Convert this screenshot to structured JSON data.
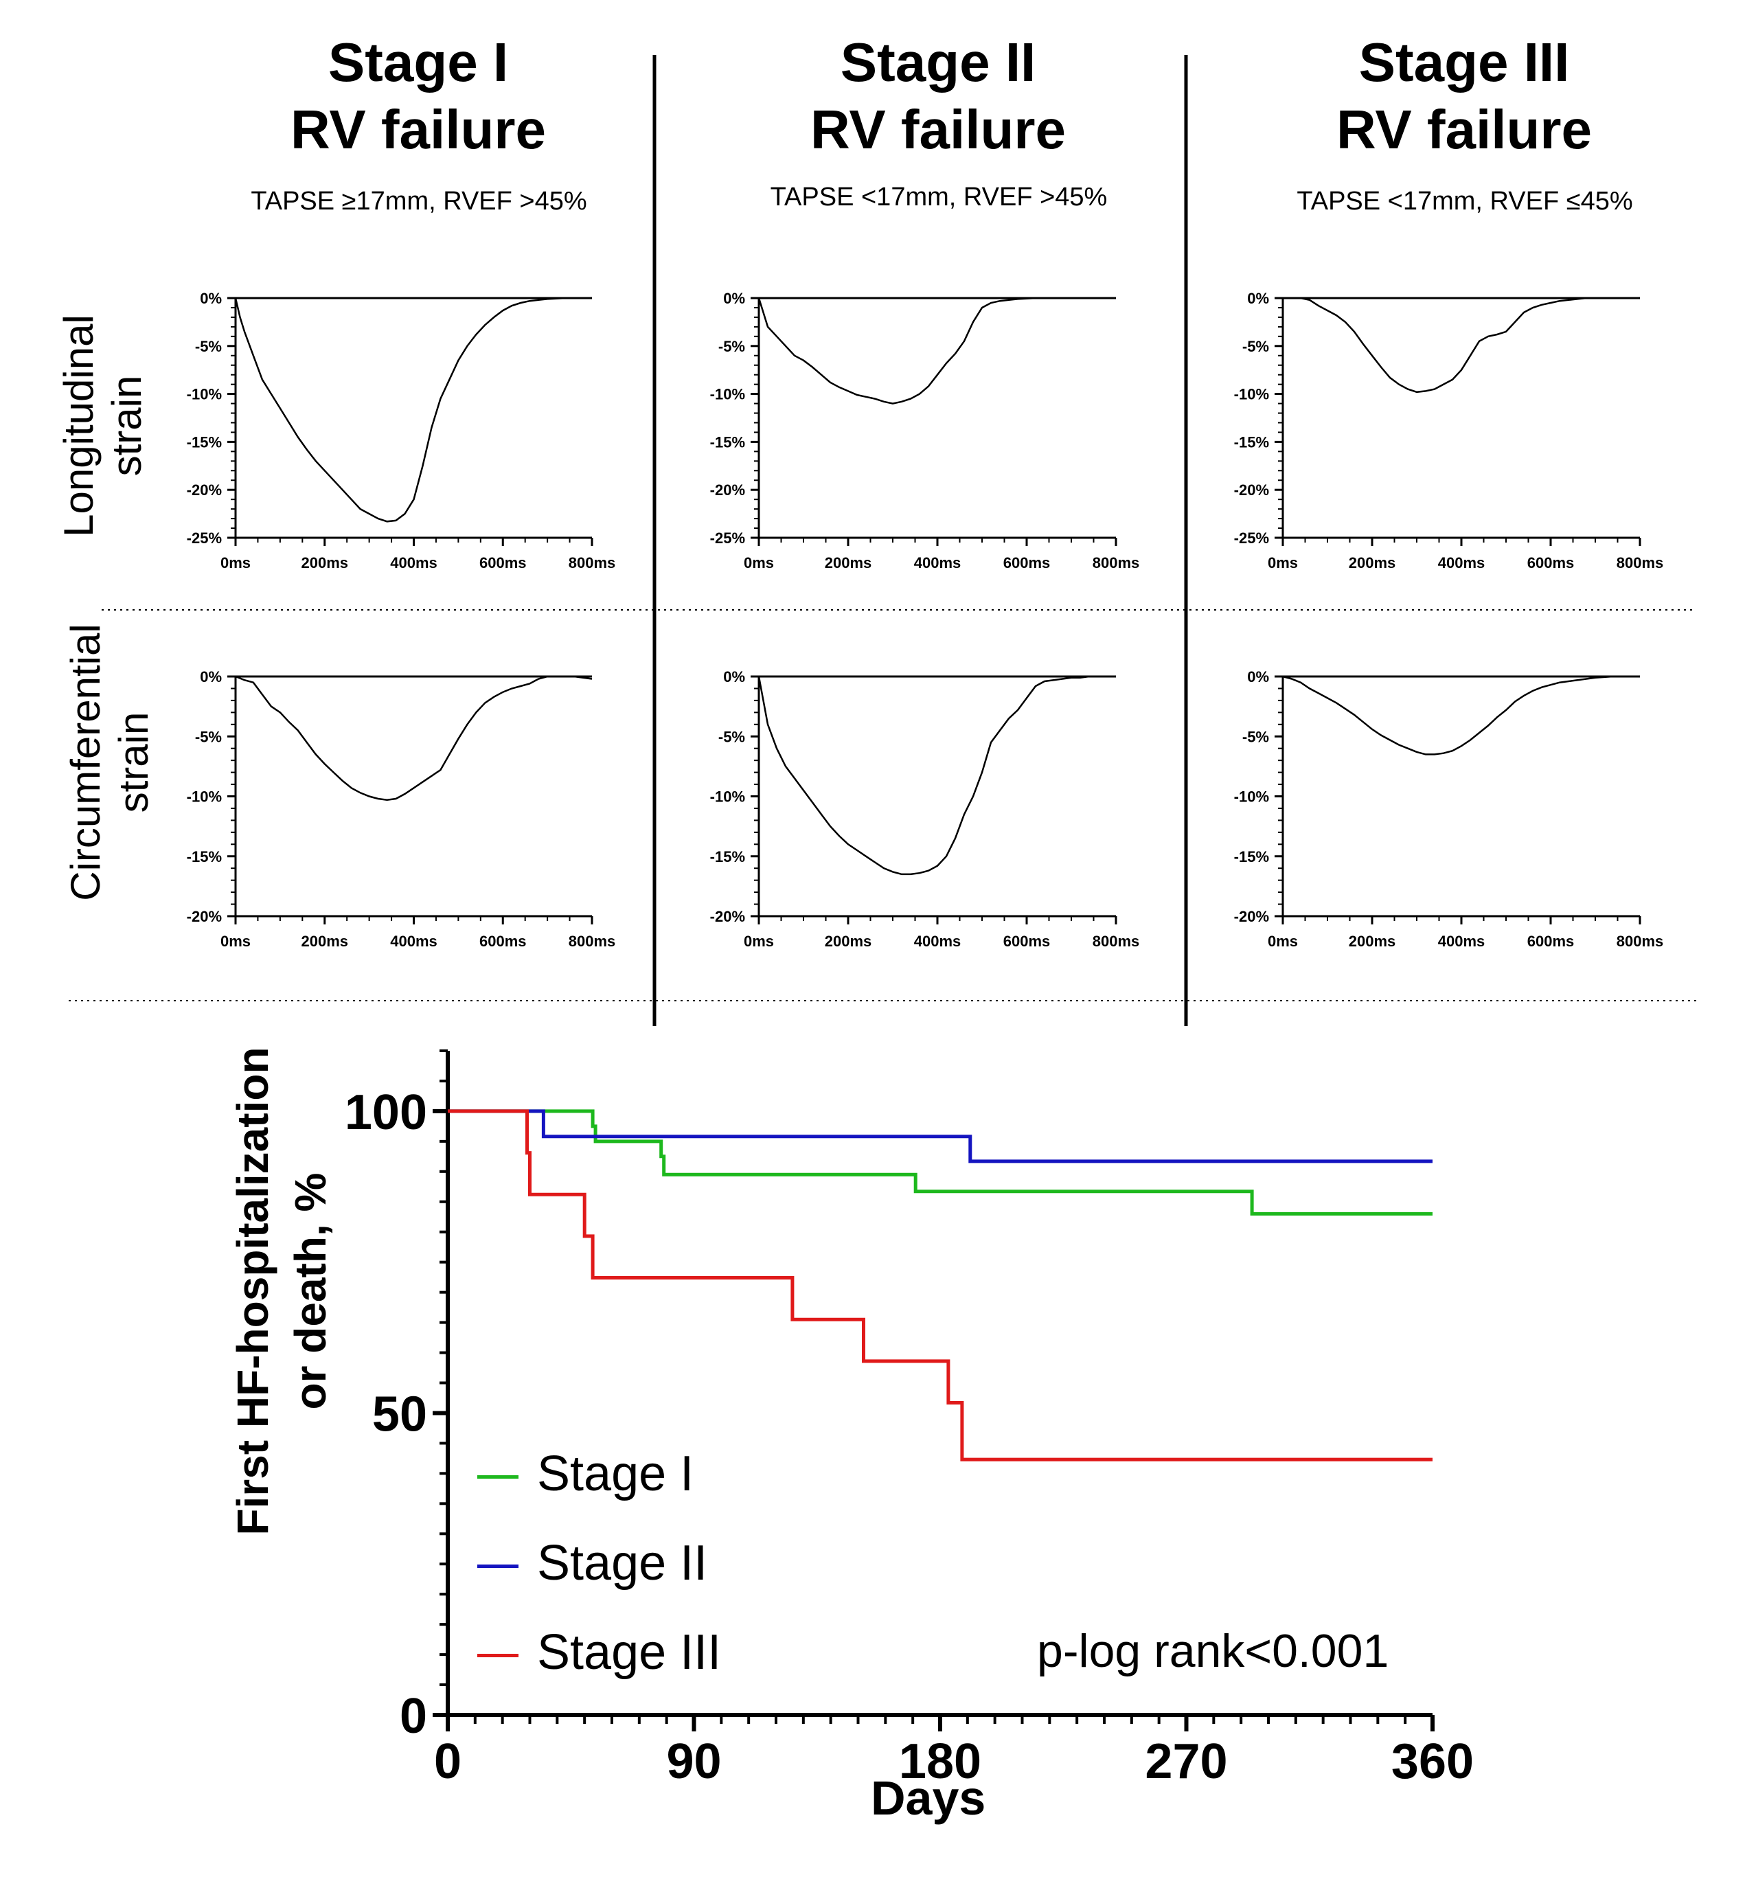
{
  "columns": [
    {
      "title_line1": "Stage I",
      "title_line2": "RV failure",
      "subtitle": "TAPSE ≥17mm, RVEF >45%"
    },
    {
      "title_line1": "Stage II",
      "title_line2": "RV failure",
      "subtitle": "TAPSE <17mm, RVEF >45%"
    },
    {
      "title_line1": "Stage III",
      "title_line2": "RV failure",
      "subtitle": "TAPSE <17mm, RVEF ≤45%"
    }
  ],
  "rows": [
    {
      "label_line1": "Longitudinal",
      "label_line2": "strain"
    },
    {
      "label_line1": "Circumferential",
      "label_line2": "strain"
    }
  ],
  "chart_data": [
    {
      "type": "line",
      "panel": "Longitudinal strain - Stage I",
      "x_ticks": [
        "0ms",
        "200ms",
        "400ms",
        "600ms",
        "800ms"
      ],
      "y_ticks": [
        "0%",
        "-5%",
        "-10%",
        "-15%",
        "-20%",
        "-25%"
      ],
      "xlim": [
        0,
        800
      ],
      "ylim": [
        -25,
        0
      ],
      "series": [
        {
          "x": [
            0,
            10,
            20,
            40,
            60,
            80,
            100,
            120,
            140,
            160,
            180,
            200,
            220,
            240,
            260,
            280,
            300,
            320,
            340,
            360,
            380,
            400,
            420,
            440,
            460,
            480,
            500,
            520,
            540,
            560,
            580,
            600,
            620,
            640,
            660,
            680,
            700,
            720,
            740,
            760,
            780,
            800
          ],
          "y": [
            0,
            -2,
            -3.5,
            -6,
            -8.5,
            -10,
            -11.5,
            -13,
            -14.5,
            -15.8,
            -17,
            -18,
            -19,
            -20,
            -21,
            -22,
            -22.5,
            -23,
            -23.3,
            -23.2,
            -22.5,
            -21,
            -17.5,
            -13.5,
            -10.5,
            -8.5,
            -6.5,
            -5,
            -3.8,
            -2.8,
            -2,
            -1.3,
            -0.8,
            -0.5,
            -0.3,
            -0.2,
            -0.1,
            -0.05,
            0,
            0,
            0,
            0
          ]
        }
      ]
    },
    {
      "type": "line",
      "panel": "Longitudinal strain - Stage II",
      "x_ticks": [
        "0ms",
        "200ms",
        "400ms",
        "600ms",
        "800ms"
      ],
      "y_ticks": [
        "0%",
        "-5%",
        "-10%",
        "-15%",
        "-20%",
        "-25%"
      ],
      "xlim": [
        0,
        800
      ],
      "ylim": [
        -25,
        0
      ],
      "series": [
        {
          "x": [
            0,
            10,
            20,
            40,
            60,
            80,
            100,
            120,
            140,
            160,
            180,
            200,
            220,
            240,
            260,
            280,
            300,
            320,
            340,
            360,
            380,
            400,
            420,
            440,
            460,
            480,
            500,
            520,
            540,
            560,
            580,
            600,
            620,
            640,
            660,
            680,
            700,
            720,
            740,
            760,
            780,
            800
          ],
          "y": [
            0,
            -1.5,
            -3,
            -4,
            -5,
            -6,
            -6.5,
            -7.2,
            -8,
            -8.8,
            -9.3,
            -9.7,
            -10.1,
            -10.3,
            -10.5,
            -10.8,
            -11,
            -10.8,
            -10.5,
            -10,
            -9.2,
            -8,
            -6.8,
            -5.8,
            -4.5,
            -2.5,
            -1,
            -0.5,
            -0.3,
            -0.2,
            -0.1,
            -0.05,
            0,
            0,
            0,
            0,
            0,
            0,
            0,
            0,
            0,
            0
          ]
        }
      ]
    },
    {
      "type": "line",
      "panel": "Longitudinal strain - Stage III",
      "x_ticks": [
        "0ms",
        "200ms",
        "400ms",
        "600ms",
        "800ms"
      ],
      "y_ticks": [
        "0%",
        "-5%",
        "-10%",
        "-15%",
        "-20%",
        "-25%"
      ],
      "xlim": [
        0,
        800
      ],
      "ylim": [
        -25,
        0
      ],
      "series": [
        {
          "x": [
            0,
            20,
            40,
            60,
            80,
            100,
            120,
            140,
            160,
            180,
            200,
            220,
            240,
            260,
            280,
            300,
            320,
            340,
            360,
            380,
            400,
            420,
            440,
            460,
            480,
            500,
            520,
            540,
            560,
            580,
            600,
            620,
            640,
            660,
            680,
            700,
            720,
            740,
            760,
            780,
            800
          ],
          "y": [
            0,
            0,
            0,
            -0.2,
            -0.8,
            -1.3,
            -1.8,
            -2.5,
            -3.5,
            -4.8,
            -6,
            -7.2,
            -8.3,
            -9,
            -9.5,
            -9.8,
            -9.7,
            -9.5,
            -9,
            -8.5,
            -7.5,
            -6,
            -4.5,
            -4,
            -3.8,
            -3.5,
            -2.5,
            -1.5,
            -1,
            -0.7,
            -0.5,
            -0.3,
            -0.2,
            -0.1,
            0,
            0,
            0,
            0,
            0,
            0,
            0
          ]
        }
      ]
    },
    {
      "type": "line",
      "panel": "Circumferential strain - Stage I",
      "x_ticks": [
        "0ms",
        "200ms",
        "400ms",
        "600ms",
        "800ms"
      ],
      "y_ticks": [
        "0%",
        "-5%",
        "-10%",
        "-15%",
        "-20%"
      ],
      "xlim": [
        0,
        800
      ],
      "ylim": [
        -20,
        0
      ],
      "series": [
        {
          "x": [
            0,
            20,
            40,
            60,
            80,
            100,
            120,
            140,
            160,
            180,
            200,
            220,
            240,
            260,
            280,
            300,
            320,
            340,
            360,
            380,
            400,
            420,
            440,
            460,
            480,
            500,
            520,
            540,
            560,
            580,
            600,
            620,
            640,
            660,
            680,
            700,
            720,
            740,
            760,
            780,
            800
          ],
          "y": [
            0,
            -0.3,
            -0.5,
            -1.5,
            -2.5,
            -3,
            -3.8,
            -4.5,
            -5.5,
            -6.5,
            -7.3,
            -8,
            -8.7,
            -9.3,
            -9.7,
            -10,
            -10.2,
            -10.3,
            -10.2,
            -9.8,
            -9.3,
            -8.8,
            -8.3,
            -7.8,
            -6.5,
            -5.2,
            -4,
            -3,
            -2.2,
            -1.7,
            -1.3,
            -1,
            -0.8,
            -0.6,
            -0.2,
            0,
            0,
            0,
            0,
            -0.1,
            -0.2
          ]
        }
      ]
    },
    {
      "type": "line",
      "panel": "Circumferential strain - Stage II",
      "x_ticks": [
        "0ms",
        "200ms",
        "400ms",
        "600ms",
        "800ms"
      ],
      "y_ticks": [
        "0%",
        "-5%",
        "-10%",
        "-15%",
        "-20%"
      ],
      "xlim": [
        0,
        800
      ],
      "ylim": [
        -20,
        0
      ],
      "series": [
        {
          "x": [
            0,
            10,
            20,
            40,
            60,
            80,
            100,
            120,
            140,
            160,
            180,
            200,
            220,
            240,
            260,
            280,
            300,
            320,
            340,
            360,
            380,
            400,
            420,
            440,
            460,
            480,
            500,
            520,
            540,
            560,
            580,
            600,
            620,
            640,
            660,
            680,
            700,
            720,
            740
          ],
          "y": [
            0,
            -2,
            -4,
            -6,
            -7.5,
            -8.5,
            -9.5,
            -10.5,
            -11.5,
            -12.5,
            -13.3,
            -14,
            -14.5,
            -15,
            -15.5,
            -16,
            -16.3,
            -16.5,
            -16.5,
            -16.4,
            -16.2,
            -15.8,
            -15,
            -13.5,
            -11.5,
            -10,
            -8,
            -5.5,
            -4.5,
            -3.5,
            -2.8,
            -1.8,
            -0.8,
            -0.4,
            -0.3,
            -0.2,
            -0.1,
            -0.1,
            0
          ]
        }
      ]
    },
    {
      "type": "line",
      "panel": "Circumferential strain - Stage III",
      "x_ticks": [
        "0ms",
        "200ms",
        "400ms",
        "600ms",
        "800ms"
      ],
      "y_ticks": [
        "0%",
        "-5%",
        "-10%",
        "-15%",
        "-20%"
      ],
      "xlim": [
        0,
        800
      ],
      "ylim": [
        -20,
        0
      ],
      "series": [
        {
          "x": [
            0,
            20,
            40,
            60,
            80,
            100,
            120,
            140,
            160,
            180,
            200,
            220,
            240,
            260,
            280,
            300,
            320,
            340,
            360,
            380,
            400,
            420,
            440,
            460,
            480,
            500,
            520,
            540,
            560,
            580,
            600,
            620,
            640,
            660,
            680,
            700,
            720,
            740,
            760,
            780,
            800
          ],
          "y": [
            0,
            -0.2,
            -0.5,
            -1,
            -1.4,
            -1.8,
            -2.2,
            -2.7,
            -3.2,
            -3.8,
            -4.4,
            -4.9,
            -5.3,
            -5.7,
            -6,
            -6.3,
            -6.5,
            -6.5,
            -6.4,
            -6.2,
            -5.8,
            -5.3,
            -4.7,
            -4.1,
            -3.4,
            -2.8,
            -2.1,
            -1.6,
            -1.2,
            -0.9,
            -0.7,
            -0.5,
            -0.4,
            -0.3,
            -0.2,
            -0.1,
            -0.05,
            0,
            0,
            0,
            0
          ]
        }
      ]
    },
    {
      "type": "line",
      "panel": "Kaplan-Meier",
      "ylabel_line1": "First  HF-hospitalization",
      "ylabel_line2": "or death,  %",
      "xlabel": "Days",
      "x_ticks": [
        "0",
        "90",
        "180",
        "270",
        "360"
      ],
      "y_ticks": [
        "0",
        "50",
        "100"
      ],
      "xlim": [
        0,
        360
      ],
      "ylim": [
        0,
        110
      ],
      "annotation": "p-log rank<0.001",
      "series": [
        {
          "name": "Stage I",
          "color": "#1db81d",
          "x": [
            0,
            53,
            53,
            54,
            54,
            78,
            78,
            79,
            79,
            171,
            171,
            294,
            294,
            360
          ],
          "y": [
            100,
            100,
            97.5,
            97.5,
            95,
            95,
            92.5,
            92.5,
            89.5,
            89.5,
            86.7,
            86.7,
            83,
            83
          ]
        },
        {
          "name": "Stage II",
          "color": "#1515c0",
          "x": [
            0,
            35,
            35,
            191,
            191,
            360
          ],
          "y": [
            100,
            100,
            95.8,
            95.8,
            91.7,
            91.7
          ]
        },
        {
          "name": "Stage III",
          "color": "#e01a1a",
          "x": [
            0,
            29,
            29,
            30,
            30,
            50,
            50,
            53,
            53,
            126,
            126,
            152,
            152,
            183,
            183,
            188,
            188,
            360
          ],
          "y": [
            100,
            100,
            93.1,
            93.1,
            86.2,
            86.2,
            79.3,
            79.3,
            72.4,
            72.4,
            65.5,
            65.5,
            58.6,
            58.6,
            51.7,
            51.7,
            42.3,
            42.3
          ]
        }
      ]
    }
  ]
}
